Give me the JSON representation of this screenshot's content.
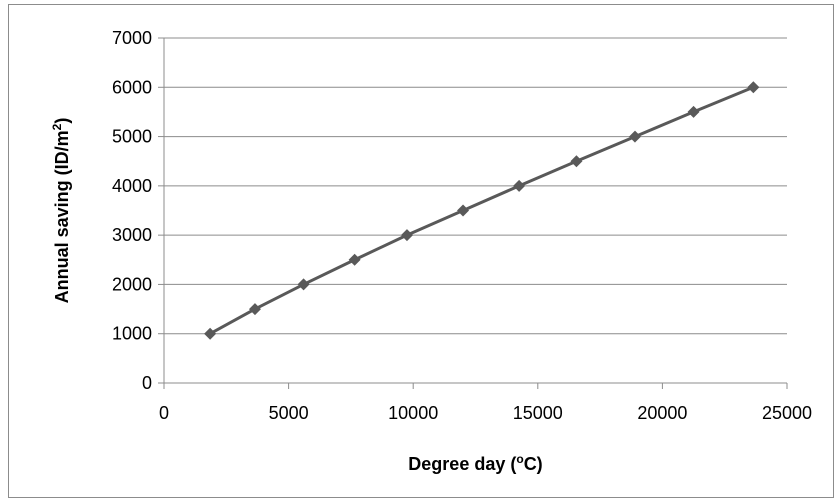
{
  "chart_data": {
    "type": "line",
    "xlabel_main": "Degree day (",
    "xlabel_sup": "o",
    "xlabel_tail": "C)",
    "ylabel_main": "Annual saving (ID/m",
    "ylabel_sup": "2",
    "ylabel_tail": ")",
    "xlim": [
      0,
      25000
    ],
    "ylim": [
      0,
      7000
    ],
    "xticks": [
      "0",
      "5000",
      "10000",
      "15000",
      "20000",
      "25000"
    ],
    "yticks": [
      "0",
      "1000",
      "2000",
      "3000",
      "4000",
      "5000",
      "6000",
      "7000"
    ],
    "grid": "horizontal",
    "line_color": "#595959",
    "series": [
      {
        "x": [
          1850,
          3650,
          5600,
          7650,
          9750,
          12000,
          14250,
          16550,
          18900,
          21250,
          23650
        ],
        "y": [
          1000,
          1500,
          2000,
          2500,
          3000,
          3500,
          4000,
          4500,
          5000,
          5500,
          6000
        ]
      }
    ]
  }
}
